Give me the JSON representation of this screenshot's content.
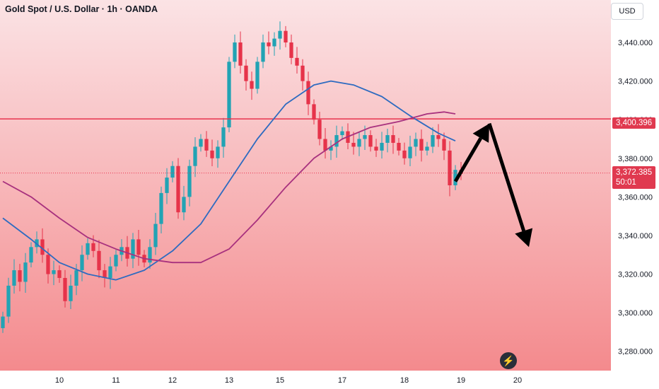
{
  "header": {
    "title": "Gold Spot / U.S. Dollar · 1h · OANDA"
  },
  "currency_label": "USD",
  "badges": {
    "level": "3,400.396",
    "last_price": "3,372.385",
    "countdown": "50:01"
  },
  "colors": {
    "up": "#22a3b4",
    "down": "#e6334a",
    "level_line": "#e8344e",
    "ma_fast": "#2e6bc0",
    "ma_slow": "#a8317e",
    "bg_top": "#fbe3e5",
    "bg_bottom": "#f48a8d",
    "arrow": "#000000"
  },
  "chart_data": {
    "type": "candlestick",
    "title": "Gold Spot / U.S. Dollar · 1h · OANDA",
    "ylim": [
      3270,
      3462
    ],
    "y_ticks": [
      "3,440.000",
      "3,420.000",
      "3,400.000",
      "3,380.000",
      "3,360.000",
      "3,340.000",
      "3,320.000",
      "3,300.000",
      "3,280.000"
    ],
    "y_tick_values": [
      3440,
      3420,
      3400,
      3380,
      3360,
      3340,
      3320,
      3300,
      3280
    ],
    "x_ticks": [
      "10",
      "11",
      "12",
      "13",
      "15",
      "17",
      "18",
      "19",
      "20"
    ],
    "x_tick_index": [
      10,
      20,
      30,
      40,
      49,
      60,
      71,
      81,
      91
    ],
    "x_count": 108,
    "candle_count": 82,
    "horizontal_level": 3400.396,
    "last_price": 3372.385,
    "closes": [
      3298,
      3314,
      3322,
      3316,
      3326,
      3334,
      3338,
      3330,
      3320,
      3322,
      3318,
      3306,
      3314,
      3322,
      3330,
      3336,
      3332,
      3322,
      3318,
      3324,
      3330,
      3334,
      3328,
      3338,
      3330,
      3326,
      3334,
      3346,
      3362,
      3370,
      3376,
      3352,
      3360,
      3376,
      3386,
      3390,
      3384,
      3380,
      3386,
      3396,
      3430,
      3440,
      3428,
      3420,
      3416,
      3430,
      3440,
      3438,
      3442,
      3446,
      3440,
      3432,
      3428,
      3420,
      3408,
      3400,
      3390,
      3384,
      3386,
      3392,
      3394,
      3388,
      3386,
      3390,
      3392,
      3386,
      3384,
      3388,
      3392,
      3388,
      3384,
      3380,
      3386,
      3390,
      3384,
      3386,
      3392,
      3390,
      3384,
      3366,
      3374,
      3372
    ],
    "ma_fast": [
      [
        0,
        3349
      ],
      [
        5,
        3338
      ],
      [
        10,
        3326
      ],
      [
        15,
        3320
      ],
      [
        20,
        3317
      ],
      [
        25,
        3322
      ],
      [
        30,
        3332
      ],
      [
        35,
        3346
      ],
      [
        40,
        3368
      ],
      [
        45,
        3390
      ],
      [
        50,
        3408
      ],
      [
        55,
        3418
      ],
      [
        58,
        3420
      ],
      [
        62,
        3418
      ],
      [
        67,
        3412
      ],
      [
        72,
        3402
      ],
      [
        77,
        3393
      ],
      [
        80,
        3389
      ]
    ],
    "ma_slow": [
      [
        0,
        3368
      ],
      [
        5,
        3360
      ],
      [
        10,
        3349
      ],
      [
        15,
        3339
      ],
      [
        20,
        3333
      ],
      [
        25,
        3328
      ],
      [
        30,
        3326
      ],
      [
        35,
        3326
      ],
      [
        40,
        3333
      ],
      [
        45,
        3348
      ],
      [
        50,
        3365
      ],
      [
        55,
        3380
      ],
      [
        60,
        3390
      ],
      [
        65,
        3396
      ],
      [
        70,
        3399
      ],
      [
        75,
        3403
      ],
      [
        78,
        3404
      ],
      [
        80,
        3403
      ]
    ],
    "projection": [
      [
        80,
        3368
      ],
      [
        86,
        3398
      ],
      [
        93,
        3334
      ]
    ]
  }
}
